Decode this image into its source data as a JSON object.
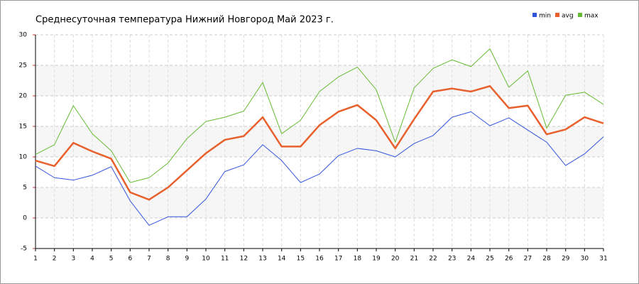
{
  "chart_data": {
    "type": "line",
    "title": "Среднесуточная температура Нижний Новгород  Май 2023 г.",
    "categories": [
      "1",
      "2",
      "3",
      "4",
      "5",
      "6",
      "7",
      "8",
      "9",
      "10",
      "11",
      "12",
      "13",
      "14",
      "15",
      "16",
      "17",
      "18",
      "19",
      "20",
      "21",
      "22",
      "23",
      "24",
      "25",
      "26",
      "27",
      "28",
      "29",
      "30",
      "31"
    ],
    "series": [
      {
        "name": "min",
        "color": "#3355dd",
        "values": [
          8.5,
          6.6,
          6.2,
          7.0,
          8.4,
          2.8,
          -1.2,
          0.2,
          0.2,
          3.1,
          7.6,
          8.7,
          12.0,
          9.4,
          5.8,
          7.2,
          10.2,
          11.4,
          11.0,
          10.0,
          12.2,
          13.5,
          16.5,
          17.4,
          15.1,
          16.4,
          14.4,
          12.4,
          8.6,
          10.5,
          13.3
        ]
      },
      {
        "name": "avg",
        "color": "#e8602c",
        "values": [
          9.4,
          8.5,
          12.3,
          10.9,
          9.7,
          4.2,
          3.0,
          5.0,
          7.8,
          10.6,
          12.8,
          13.4,
          16.5,
          11.7,
          11.7,
          15.2,
          17.4,
          18.5,
          16.0,
          11.4,
          16.2,
          20.7,
          21.2,
          20.7,
          21.6,
          18.0,
          18.4,
          13.7,
          14.5,
          16.5,
          15.5
        ]
      },
      {
        "name": "max",
        "color": "#66bb33",
        "values": [
          10.4,
          12.0,
          18.4,
          13.8,
          11.0,
          5.8,
          6.6,
          9.0,
          13.0,
          15.8,
          16.5,
          17.5,
          22.2,
          13.8,
          16.0,
          20.7,
          23.1,
          24.7,
          21.0,
          12.4,
          21.3,
          24.5,
          25.9,
          24.8,
          27.7,
          21.4,
          24.1,
          14.7,
          20.1,
          20.6,
          18.6
        ]
      }
    ],
    "ylim": [
      -5,
      30
    ],
    "yticks": [
      -5,
      0,
      5,
      10,
      15,
      20,
      25,
      30
    ],
    "grid": true
  }
}
